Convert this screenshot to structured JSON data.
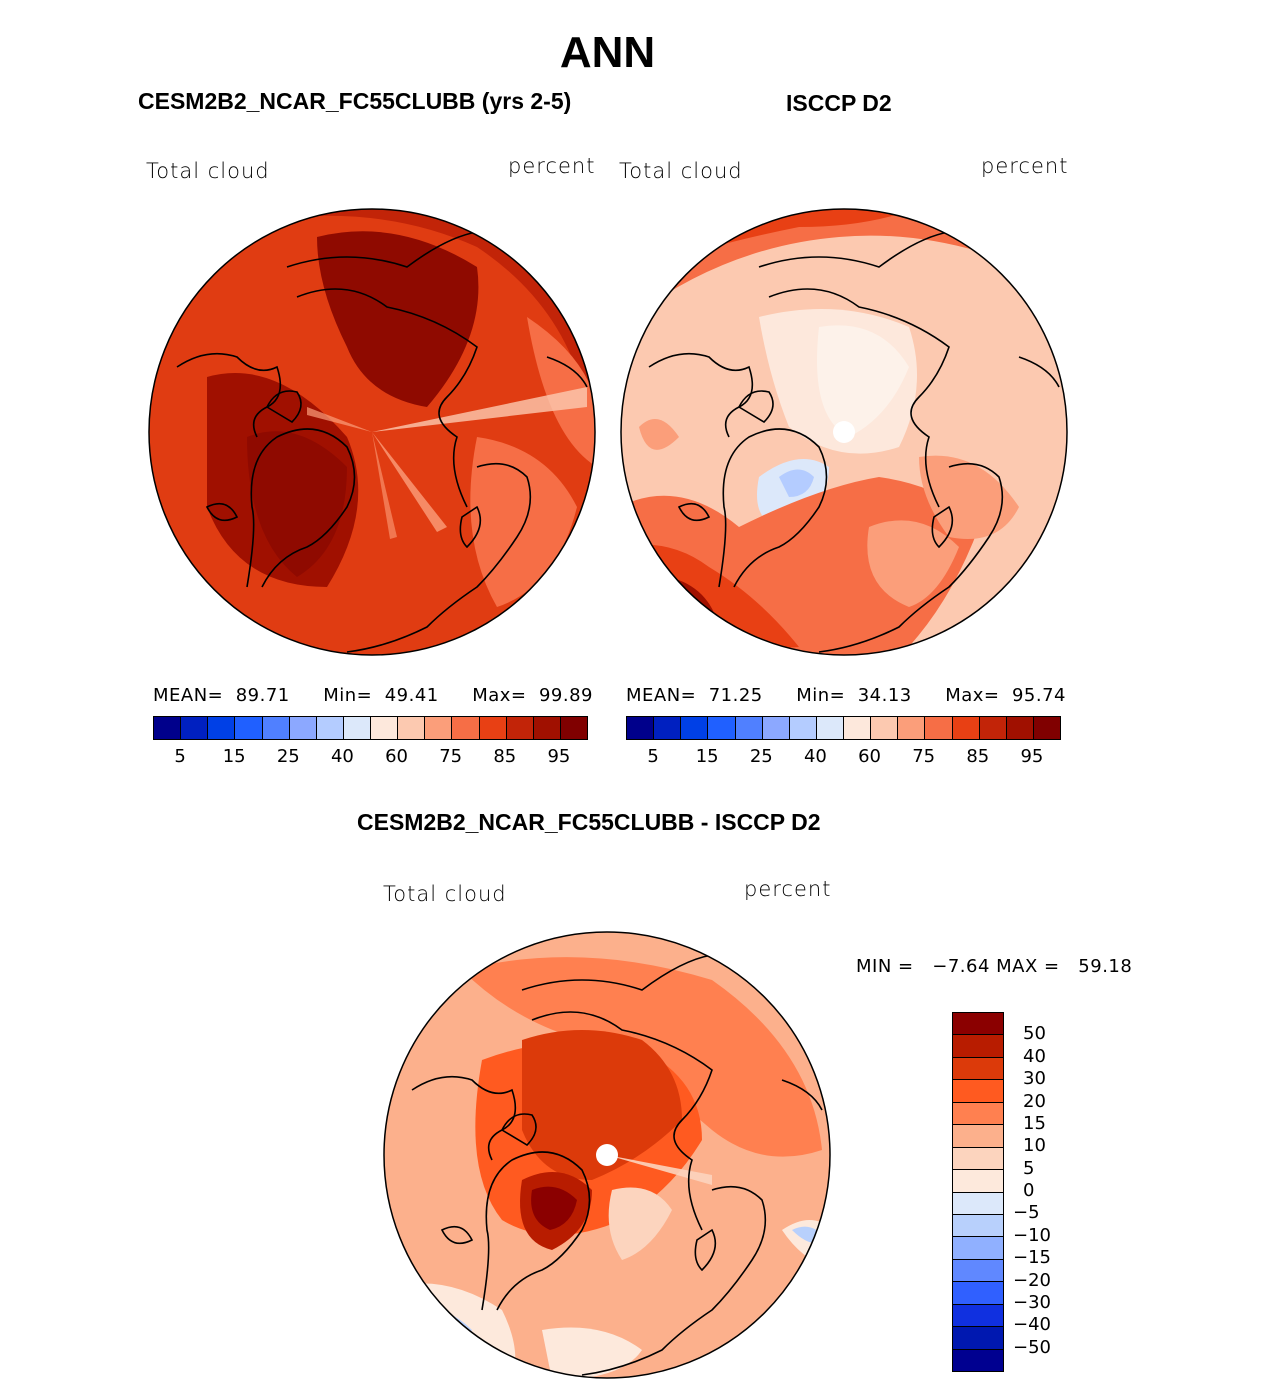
{
  "title": "ANN",
  "panels": [
    {
      "title": "CESM2B2_NCAR_FC55CLUBB (yrs 2-5)",
      "variable": "Total cloud",
      "units": "percent",
      "stats": {
        "mean_label": "MEAN=",
        "mean": "89.71",
        "min_label": "Min=",
        "min": "49.41",
        "max_label": "Max=",
        "max": "99.89"
      },
      "colorbar_ticks": [
        "5",
        "15",
        "25",
        "40",
        "60",
        "75",
        "85",
        "95"
      ]
    },
    {
      "title": "ISCCP D2",
      "variable": "Total cloud",
      "units": "percent",
      "stats": {
        "mean_label": "MEAN=",
        "mean": "71.25",
        "min_label": "Min=",
        "min": "34.13",
        "max_label": "Max=",
        "max": "95.74"
      },
      "colorbar_ticks": [
        "5",
        "15",
        "25",
        "40",
        "60",
        "75",
        "85",
        "95"
      ]
    }
  ],
  "diff": {
    "title": "CESM2B2_NCAR_FC55CLUBB - ISCCP D2",
    "variable": "Total cloud",
    "units": "percent",
    "minmax": "MIN =   −7.64 MAX =   59.18",
    "colorbar_ticks": [
      "50",
      "40",
      "30",
      "20",
      "15",
      "10",
      "5",
      "0",
      "−5",
      "−10",
      "−15",
      "−20",
      "−30",
      "−40",
      "−50"
    ]
  },
  "chart_data": [
    {
      "type": "heatmap",
      "projection": "north polar stereographic",
      "title": "CESM2B2_NCAR_FC55CLUBB (yrs 2-5)",
      "variable": "Total cloud",
      "units": "percent",
      "mean": 89.71,
      "min": 49.41,
      "max": 99.89,
      "contour_levels": [
        5,
        10,
        15,
        20,
        25,
        30,
        40,
        50,
        60,
        65,
        75,
        80,
        85,
        90,
        95
      ]
    },
    {
      "type": "heatmap",
      "projection": "north polar stereographic",
      "title": "ISCCP D2",
      "variable": "Total cloud",
      "units": "percent",
      "mean": 71.25,
      "min": 34.13,
      "max": 95.74,
      "contour_levels": [
        5,
        10,
        15,
        20,
        25,
        30,
        40,
        50,
        60,
        65,
        75,
        80,
        85,
        90,
        95
      ]
    },
    {
      "type": "heatmap",
      "projection": "north polar stereographic",
      "title": "CESM2B2_NCAR_FC55CLUBB - ISCCP D2",
      "variable": "Total cloud",
      "units": "percent",
      "min": -7.64,
      "max": 59.18,
      "contour_levels": [
        -50,
        -40,
        -30,
        -20,
        -15,
        -10,
        -5,
        0,
        5,
        10,
        15,
        20,
        30,
        40,
        50
      ]
    }
  ],
  "colors": {
    "abs_scale": [
      "#00008b",
      "#0020c0",
      "#0040e6",
      "#2060ff",
      "#5080ff",
      "#8ca8ff",
      "#b4ccff",
      "#dce8fa",
      "#fde8dc",
      "#fcc9b0",
      "#fb9e7a",
      "#f66e46",
      "#e84014",
      "#c22408",
      "#a01000",
      "#800000"
    ],
    "diff_scale_top_down": [
      "#8b0000",
      "#b81c00",
      "#dc3a0a",
      "#ff5a20",
      "#ff8050",
      "#fcb08c",
      "#fcd4be",
      "#fde9dc",
      "#dce8fa",
      "#b8d0fc",
      "#90b0ff",
      "#6088ff",
      "#3060ff",
      "#1030e0",
      "#0018b0",
      "#000090"
    ]
  }
}
